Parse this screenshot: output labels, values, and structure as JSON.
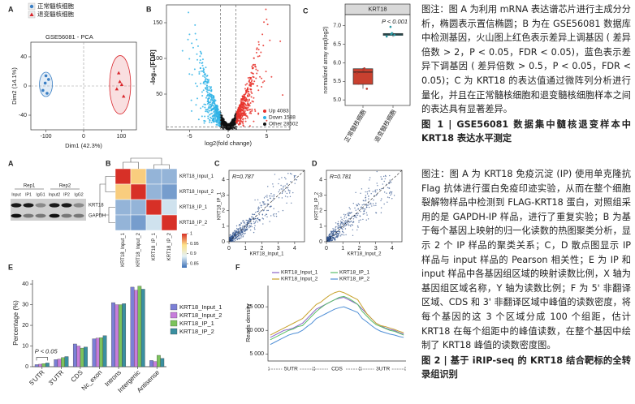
{
  "figure1": {
    "panel_a": {
      "label": "A",
      "title": "GSE56081 - PCA",
      "xlabel": "Dim1 (42.3%)",
      "ylabel": "Dim2 (14.1%)",
      "xlim": [
        -140,
        140
      ],
      "ylim": [
        -60,
        60
      ],
      "xticks": [
        -100,
        0,
        100
      ],
      "yticks": [
        -40,
        0,
        40
      ],
      "series": [
        {
          "name": "正常髓核细胞",
          "color": "#3a7fc4",
          "x": [
            -108,
            -102,
            -97,
            -93,
            -100
          ],
          "values": [
            -6,
            4,
            -10,
            9,
            14
          ]
        },
        {
          "name": "退变髓核细胞",
          "color": "#d9262c",
          "x": [
            88,
            96,
            101,
            106,
            93
          ],
          "values": [
            -4,
            6,
            2,
            -14,
            18
          ]
        }
      ]
    },
    "panel_b": {
      "label": "B",
      "xlabel": "log2(fold change)",
      "ylabel": "-log₁₀[FDR]",
      "xlim": [
        -8,
        8
      ],
      "ylim": [
        0,
        175
      ],
      "xticks": [
        -5,
        0,
        5
      ],
      "yticks": [
        50,
        100,
        150
      ],
      "series": [
        {
          "name": "Up 4083",
          "color": "#e8312a"
        },
        {
          "name": "Down 1588",
          "color": "#2fb3e6"
        },
        {
          "name": "Other 28502",
          "color": "#111111"
        }
      ]
    },
    "panel_c": {
      "label": "C",
      "title": "KRT18",
      "ylabel": "normalized array exp(log2)",
      "annotation": "P < 0.001",
      "categories": [
        "正常髓核细胞",
        "退变髓核细胞"
      ],
      "colors": [
        "#c9402f",
        "#3cb5c0"
      ],
      "ylim": [
        4.85,
        7.3
      ],
      "yticks": [
        {
          "value": 5,
          "label": "5.0"
        },
        {
          "value": 5.5,
          "label": "5.5"
        },
        {
          "value": 6,
          "label": "6.0"
        },
        {
          "value": 6.5,
          "label": "6.5"
        },
        {
          "value": 7,
          "label": "7.0"
        }
      ],
      "boxes": [
        {
          "min": 5.3,
          "q1": 5.42,
          "median": 5.75,
          "q3": 5.84,
          "max": 5.86,
          "points": [
            5.3,
            5.44,
            5.72,
            5.8,
            5.85
          ]
        },
        {
          "min": 6.7,
          "q1": 6.74,
          "median": 6.77,
          "q3": 6.79,
          "max": 6.81,
          "points": [
            6.71,
            6.75,
            6.77,
            6.8,
            6.97
          ]
        }
      ]
    },
    "caption": {
      "note": "图注：图 A 为利用 mRNA 表达谱芯片进行主成分分析，椭圆表示置信椭圆；B 为在 GSE56081 数据库中检测基因，火山图上红色表示差异上调基因 ( 差异倍数 > 2，P < 0.05，FDR < 0.05)，蓝色表示差异下调基因 ( 差异倍数 > 0.5，P < 0.05，FDR < 0.05)；C 为 KRT18 的表达值通过微阵列分析进行量化，并且在正常髓核细胞和退变髓核细胞样本之间的表达具有显著差异。",
      "title": "图 1 | GSE56081 数据集中髓核退变样本中 KRT18 表达水平测定"
    }
  },
  "figure2": {
    "panel_a": {
      "label": "A",
      "replicates": [
        "Rep1",
        "Rep2"
      ],
      "lanes": [
        "Input",
        "IP1",
        "IgG1",
        "Input2",
        "IP2",
        "IgG2"
      ],
      "bands": [
        "KRT18",
        "GAPDH"
      ]
    },
    "panel_b": {
      "label": "B",
      "labels": [
        "KRT18_Input_1",
        "KRT18_Input_2",
        "KRT18_IP_1",
        "KRT18_IP_2"
      ],
      "values": [
        [
          1,
          0.95,
          0.86,
          0.86
        ],
        [
          0.95,
          1,
          0.86,
          0.85
        ],
        [
          0.86,
          0.86,
          1,
          0.88
        ],
        [
          0.86,
          0.85,
          0.88,
          1
        ]
      ],
      "clim": [
        0.83,
        1
      ],
      "colors": [
        "#3b6fb6",
        "#e3f1f6",
        "#fde28a",
        "#d73027"
      ],
      "colorbar_ticks": [
        1,
        0.95,
        0.9,
        0.85
      ]
    },
    "panel_c": {
      "label": "C",
      "annotation": "R=0.787",
      "xlabel": "KRT18_Input_1",
      "ylabel": "KRT18_IP_1",
      "xlim": [
        0,
        4.6
      ],
      "ylim": [
        0,
        4.6
      ],
      "xticks": [
        0,
        1,
        2,
        3,
        4
      ],
      "yticks": [
        0,
        1,
        2,
        3,
        4
      ]
    },
    "panel_d": {
      "label": "D",
      "annotation": "R=0.781",
      "xlabel": "KRT18_Input_2",
      "ylabel": "KRT18_IP_2",
      "xlim": [
        0,
        4.6
      ],
      "ylim": [
        0,
        4.6
      ],
      "xticks": [
        0,
        1,
        2,
        3,
        4
      ],
      "yticks": [
        0,
        1,
        2,
        3,
        4
      ]
    },
    "panel_e": {
      "label": "E",
      "ylabel": "Percentage (%)",
      "annotation": "P < 0.05",
      "categories": [
        "5'UTR",
        "3'UTR",
        "CDS",
        "Nc_exon",
        "Introns",
        "Intergenic",
        "Antisense"
      ],
      "ylim": [
        0,
        42
      ],
      "yticks": [
        0,
        10,
        20,
        30,
        40
      ],
      "series": [
        {
          "name": "KRT18_Input_1",
          "color": "#7b7fd6",
          "values": [
            1.0,
            3.4,
            11.0,
            13.5,
            31.0,
            38.5,
            3.0
          ]
        },
        {
          "name": "KRT18_Input_2",
          "color": "#c77ddb",
          "values": [
            1.2,
            3.7,
            10.0,
            13.8,
            30.0,
            37.0,
            2.5
          ]
        },
        {
          "name": "KRT18_IP_1",
          "color": "#7cc35c",
          "values": [
            1.5,
            4.4,
            9.0,
            14.0,
            30.0,
            39.0,
            5.5
          ]
        },
        {
          "name": "KRT18_IP_2",
          "color": "#3a8fa0",
          "values": [
            1.8,
            4.9,
            9.5,
            15.0,
            30.5,
            37.5,
            4.0
          ]
        }
      ]
    },
    "panel_f": {
      "label": "F",
      "ylabel": "Reads density",
      "regions": [
        "5UTR",
        "CDS",
        "3UTR"
      ],
      "ylim": [
        3500,
        19500
      ],
      "yticks": [
        {
          "value": 5000,
          "label": "5 000"
        },
        {
          "value": 10000,
          "label": "10 000"
        },
        {
          "value": 15000,
          "label": "15 000"
        }
      ],
      "series": [
        {
          "name": "KRT18_Input_1",
          "color": "#8a63c9",
          "values": [
            8500,
            9000,
            9500,
            10000,
            10200,
            10500,
            11000,
            11500,
            12500,
            13500,
            14500,
            15000,
            15500,
            16000,
            16500,
            16800,
            17000,
            16500,
            16000,
            15500,
            14500,
            13500,
            12500,
            11500,
            11000,
            10500,
            10200,
            10000,
            9500,
            9200
          ]
        },
        {
          "name": "KRT18_Input_2",
          "color": "#c8a22c",
          "values": [
            9000,
            9500,
            10000,
            10500,
            11000,
            11500,
            12000,
            12500,
            13500,
            14500,
            15500,
            16000,
            16800,
            17500,
            18000,
            18300,
            18000,
            17500,
            17000,
            16500,
            15000,
            13500,
            12500,
            11500,
            11000,
            10800,
            10500,
            10200,
            9800,
            9500
          ]
        },
        {
          "name": "KRT18_IP_1",
          "color": "#5bbf6a",
          "values": [
            8000,
            8500,
            9000,
            9500,
            10000,
            10300,
            10800,
            11000,
            12000,
            13000,
            14000,
            14800,
            15500,
            16000,
            16500,
            17000,
            17200,
            16800,
            16200,
            15500,
            14000,
            13000,
            12000,
            11200,
            10800,
            10400,
            10000,
            9800,
            9400,
            9000
          ]
        },
        {
          "name": "KRT18_IP_2",
          "color": "#4f8fd6",
          "values": [
            7000,
            7500,
            8000,
            8500,
            9000,
            9300,
            9500,
            10000,
            10800,
            11500,
            12500,
            13000,
            13500,
            14000,
            14500,
            14800,
            15000,
            14600,
            14200,
            13800,
            12500,
            11800,
            11000,
            10300,
            9800,
            9500,
            9200,
            9000,
            8700,
            8500
          ]
        }
      ]
    },
    "caption": {
      "note": "图注：图 A 为 KRT18 免疫沉淀 (IP) 使用单克隆抗 Flag 抗体进行蛋白免疫印迹实验，从而在整个细胞裂解物样品中检测到 FLAG-KRT18 蛋白，对照组采用的是 GAPDH-IP 样品，进行了重复实验；B 为基于每个基因上映射的归一化读数的热图聚类分析，显示 2 个 IP 样品的聚类关系；C，D 散点图显示 IP 样品与 input 样品的 Pearson 相关性；E 为 IP 和 input 样品中各基因组区域的映射读数比例，X 轴为基因组区域名称，Y 轴为读数比例；F 为 5' 非翻译区域、CDS 和 3' 非翻译区域中峰值的读数密度，将每个基因的这 3 个区域分成 100 个组距，估计 KRT18 在每个组距中的峰值读数，在整个基因中绘制了 KRT18 峰值的读数密度图。",
      "title": "图 2 | 基于 iRIP-seq 的 KRT18 结合靶标的全转录组识别"
    }
  }
}
